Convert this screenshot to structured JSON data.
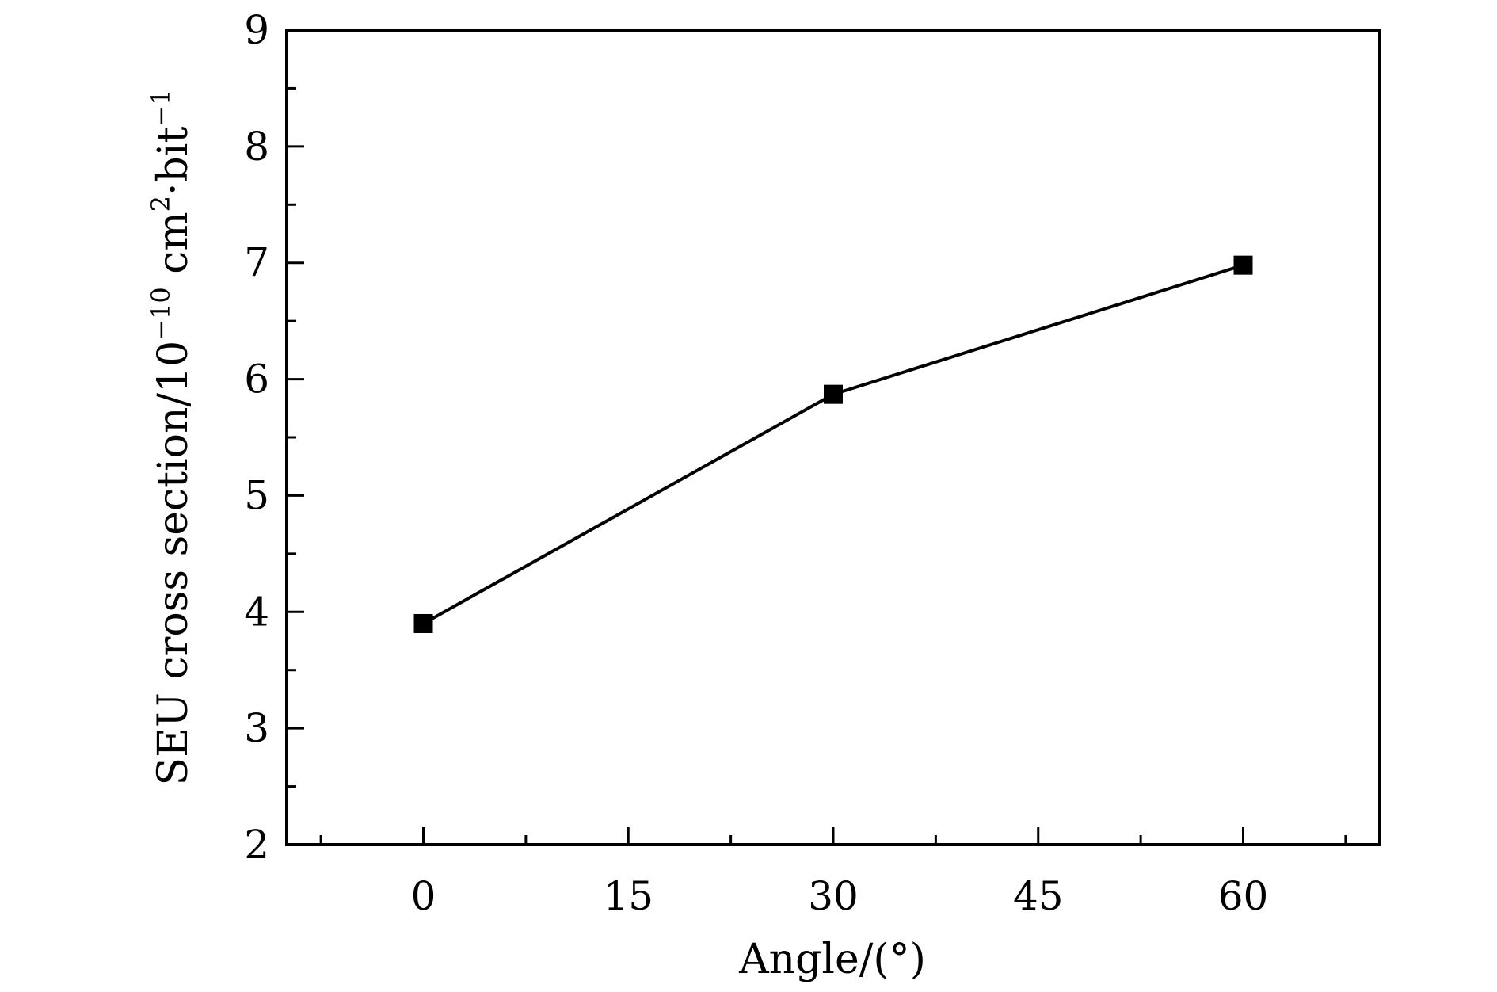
{
  "chart_data": {
    "type": "line",
    "title": "",
    "xlabel": "Angle/(°)",
    "ylabel": {
      "base": "SEU cross section/10",
      "exp": "−10",
      "unit_a": " cm",
      "unit_exp": "2",
      "unit_b": "·bit",
      "unit_exp2": "−1"
    },
    "xlim": [
      -10,
      70
    ],
    "ylim": [
      2,
      9
    ],
    "xticks": [
      0,
      15,
      30,
      45,
      60
    ],
    "xminor": [
      -7.5,
      7.5,
      22.5,
      37.5,
      52.5,
      67.5
    ],
    "yticks": [
      2,
      3,
      4,
      5,
      6,
      7,
      8,
      9
    ],
    "yminor": [
      2.5,
      3.5,
      4.5,
      5.5,
      6.5,
      7.5,
      8.5
    ],
    "grid": false,
    "series": [
      {
        "marker": "square",
        "color": "#000000",
        "x": [
          0,
          30,
          60
        ],
        "y": [
          3.9,
          5.87,
          6.98
        ]
      }
    ]
  }
}
